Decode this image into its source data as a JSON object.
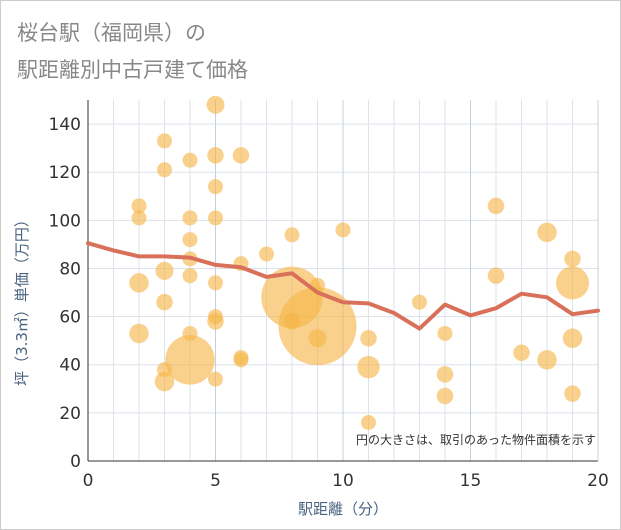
{
  "chart_data": {
    "type": "scatter",
    "title_lines": [
      "桜台駅（福岡県）の",
      "駅距離別中古戸建て価格"
    ],
    "xlabel": "駅距離（分）",
    "ylabel": "坪（3.3㎡）単価（万円）",
    "xlim": [
      0,
      20
    ],
    "ylim": [
      0,
      150
    ],
    "x_ticks": [
      "0",
      "5",
      "10",
      "15",
      "20"
    ],
    "y_ticks": [
      "0",
      "20",
      "40",
      "60",
      "80",
      "100",
      "120",
      "140"
    ],
    "note": "円の大きさは、取引のあった物件面積を示す",
    "colors": {
      "bubble": "#f5b445",
      "trend": "#d9705a",
      "grid": "#dde3ea",
      "major_grid": "#c3d0dd"
    },
    "points": [
      {
        "x": 2,
        "y": 106,
        "s": 1
      },
      {
        "x": 2,
        "y": 101,
        "s": 1
      },
      {
        "x": 2,
        "y": 74,
        "s": 1.3
      },
      {
        "x": 2,
        "y": 53,
        "s": 1.3
      },
      {
        "x": 3,
        "y": 133,
        "s": 1
      },
      {
        "x": 3,
        "y": 121,
        "s": 1
      },
      {
        "x": 3,
        "y": 79,
        "s": 1.2
      },
      {
        "x": 3,
        "y": 66,
        "s": 1.1
      },
      {
        "x": 3,
        "y": 38,
        "s": 1
      },
      {
        "x": 3,
        "y": 33,
        "s": 1.3
      },
      {
        "x": 4,
        "y": 125,
        "s": 1
      },
      {
        "x": 4,
        "y": 101,
        "s": 1
      },
      {
        "x": 4,
        "y": 92,
        "s": 1
      },
      {
        "x": 4,
        "y": 84,
        "s": 1
      },
      {
        "x": 4,
        "y": 77,
        "s": 1
      },
      {
        "x": 4,
        "y": 53,
        "s": 1
      },
      {
        "x": 4,
        "y": 42,
        "s": 3.3
      },
      {
        "x": 5,
        "y": 148,
        "s": 1.2
      },
      {
        "x": 5,
        "y": 127,
        "s": 1.1
      },
      {
        "x": 5,
        "y": 114,
        "s": 1
      },
      {
        "x": 5,
        "y": 101,
        "s": 1
      },
      {
        "x": 5,
        "y": 74,
        "s": 1
      },
      {
        "x": 5,
        "y": 60,
        "s": 1
      },
      {
        "x": 5,
        "y": 58,
        "s": 1.1
      },
      {
        "x": 5,
        "y": 34,
        "s": 1
      },
      {
        "x": 6,
        "y": 127,
        "s": 1.1
      },
      {
        "x": 6,
        "y": 82,
        "s": 1
      },
      {
        "x": 6,
        "y": 43,
        "s": 1
      },
      {
        "x": 6,
        "y": 42,
        "s": 1
      },
      {
        "x": 7,
        "y": 86,
        "s": 1
      },
      {
        "x": 8,
        "y": 94,
        "s": 1
      },
      {
        "x": 8,
        "y": 68,
        "s": 4.1
      },
      {
        "x": 8,
        "y": 58,
        "s": 1.1
      },
      {
        "x": 9,
        "y": 73,
        "s": 1
      },
      {
        "x": 9,
        "y": 56,
        "s": 5.2
      },
      {
        "x": 9,
        "y": 51,
        "s": 1.2
      },
      {
        "x": 10,
        "y": 96,
        "s": 1
      },
      {
        "x": 11,
        "y": 51,
        "s": 1.1
      },
      {
        "x": 11,
        "y": 39,
        "s": 1.5
      },
      {
        "x": 11,
        "y": 16,
        "s": 1
      },
      {
        "x": 13,
        "y": 66,
        "s": 1
      },
      {
        "x": 14,
        "y": 53,
        "s": 1
      },
      {
        "x": 14,
        "y": 36,
        "s": 1.1
      },
      {
        "x": 14,
        "y": 27,
        "s": 1.1
      },
      {
        "x": 16,
        "y": 106,
        "s": 1.1
      },
      {
        "x": 16,
        "y": 77,
        "s": 1.1
      },
      {
        "x": 17,
        "y": 45,
        "s": 1.1
      },
      {
        "x": 18,
        "y": 95,
        "s": 1.3
      },
      {
        "x": 18,
        "y": 42,
        "s": 1.3
      },
      {
        "x": 19,
        "y": 84,
        "s": 1.1
      },
      {
        "x": 19,
        "y": 74,
        "s": 2.2
      },
      {
        "x": 19,
        "y": 51,
        "s": 1.3
      },
      {
        "x": 19,
        "y": 28,
        "s": 1.1
      }
    ],
    "trend": {
      "x": [
        0,
        1,
        2,
        3,
        4,
        5,
        6,
        7,
        8,
        9,
        10,
        11,
        12,
        13,
        14,
        15,
        16,
        17,
        18,
        19,
        20
      ],
      "y": [
        90.5,
        87.5,
        85,
        85,
        84.5,
        81.5,
        80.5,
        76.5,
        78,
        70,
        66,
        65.5,
        61.5,
        55,
        65,
        60.5,
        63.5,
        69.5,
        68,
        61,
        62.5
      ]
    }
  }
}
